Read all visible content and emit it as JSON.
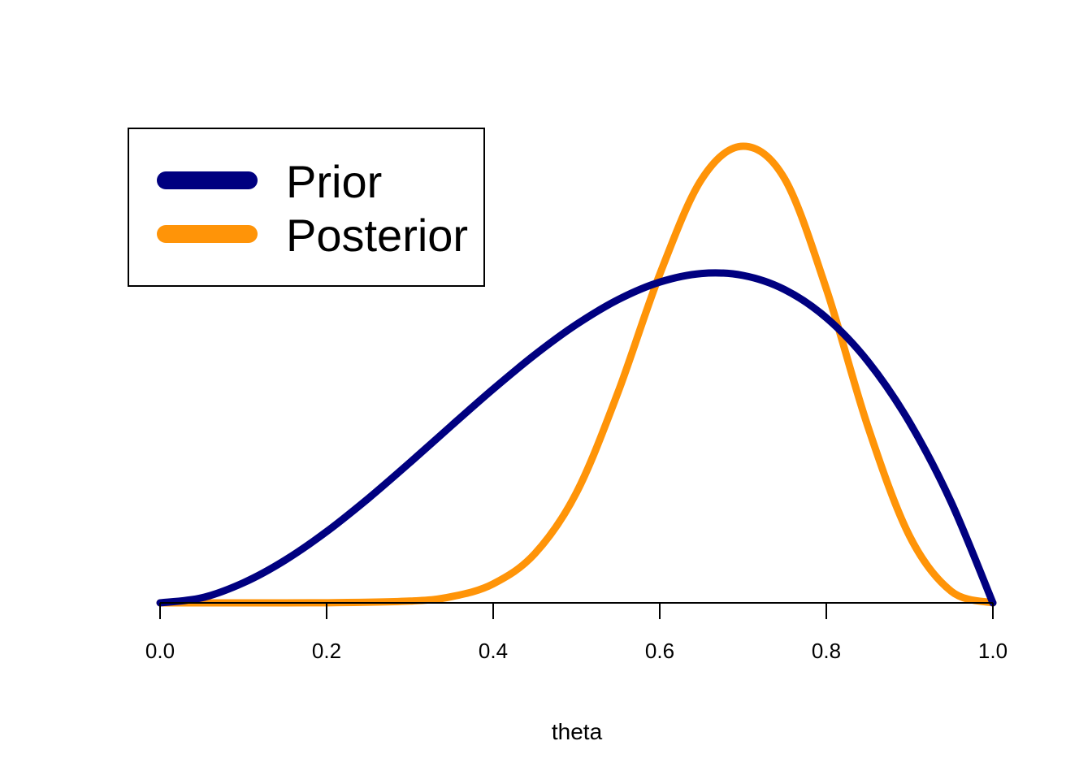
{
  "chart_data": {
    "type": "line",
    "title": "",
    "xlabel": "theta",
    "ylabel": "",
    "xlim": [
      0,
      1
    ],
    "x_ticks": [
      "0.0",
      "0.2",
      "0.4",
      "0.6",
      "0.8",
      "1.0"
    ],
    "y_axis_shown": false,
    "grid": false,
    "legend_position": "top-left",
    "series": [
      {
        "name": "Prior",
        "color": "#000080",
        "x": [
          0.0,
          0.05,
          0.1,
          0.15,
          0.2,
          0.25,
          0.3,
          0.35,
          0.4,
          0.45,
          0.5,
          0.55,
          0.6,
          0.65,
          0.7,
          0.75,
          0.8,
          0.85,
          0.9,
          0.95,
          1.0
        ],
        "y": [
          0.0,
          0.135,
          0.54,
          1.148,
          1.92,
          2.813,
          3.78,
          4.778,
          5.76,
          6.683,
          7.5,
          8.168,
          8.64,
          8.873,
          8.82,
          8.438,
          7.68,
          6.503,
          4.86,
          2.708,
          0.0
        ]
      },
      {
        "name": "Posterior",
        "color": "#FF9408",
        "x": [
          0.0,
          0.1,
          0.2,
          0.3,
          0.35,
          0.4,
          0.45,
          0.5,
          0.55,
          0.6,
          0.65,
          0.7,
          0.75,
          0.8,
          0.85,
          0.9,
          0.95,
          1.0
        ],
        "y": [
          0.0,
          0.0,
          0.003,
          0.048,
          0.168,
          0.513,
          1.326,
          2.969,
          5.682,
          8.85,
          11.4,
          12.3,
          11.42,
          8.46,
          4.74,
          1.8,
          0.313,
          0.0
        ]
      }
    ]
  }
}
